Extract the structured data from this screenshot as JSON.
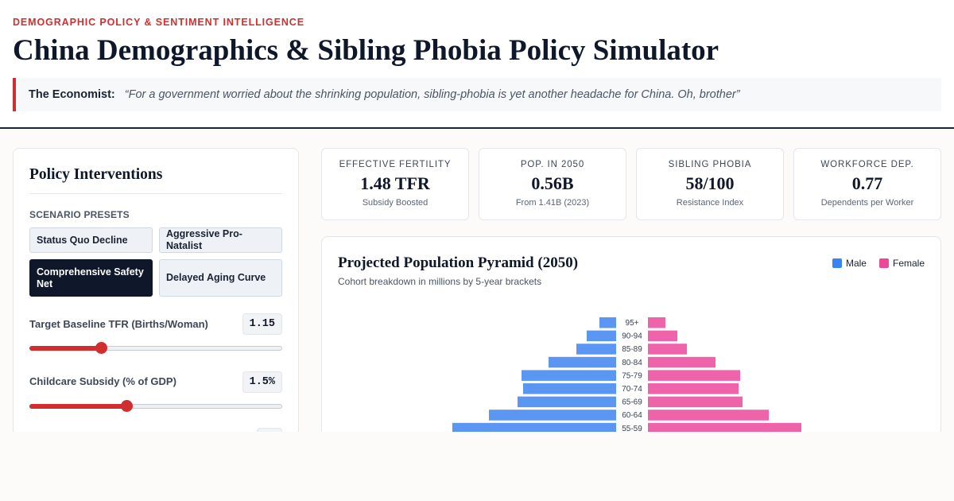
{
  "header": {
    "eyebrow": "DEMOGRAPHIC POLICY & SENTIMENT INTELLIGENCE",
    "title": "China Demographics & Sibling Phobia Policy Simulator",
    "quote_source": "The Economist:",
    "quote_text": "“For a government worried about the shrinking population, sibling-phobia is yet another headache for China. Oh, brother”"
  },
  "panel": {
    "title": "Policy Interventions",
    "presets_label": "SCENARIO PRESETS",
    "presets": [
      {
        "label": "Status Quo Decline",
        "active": false
      },
      {
        "label": "Aggressive Pro-Natalist",
        "active": false
      },
      {
        "label": "Comprehensive Safety Net",
        "active": true
      },
      {
        "label": "Delayed Aging Curve",
        "active": false
      }
    ],
    "controls": [
      {
        "label": "Target Baseline TFR (Births/Woman)",
        "value": "1.15",
        "fraction": 0.28
      },
      {
        "label": "Childcare Subsidy (% of GDP)",
        "value": "1.5%",
        "fraction": 0.38
      }
    ]
  },
  "kpis": [
    {
      "label": "EFFECTIVE FERTILITY",
      "value": "1.48 TFR",
      "sub": "Subsidy Boosted"
    },
    {
      "label": "POP. IN 2050",
      "value": "0.56B",
      "sub": "From 1.41B (2023)"
    },
    {
      "label": "SIBLING PHOBIA",
      "value": "58/100",
      "sub": "Resistance Index"
    },
    {
      "label": "WORKFORCE DEP.",
      "value": "0.77",
      "sub": "Dependents per Worker"
    }
  ],
  "chart": {
    "title": "Projected Population Pyramid (2050)",
    "subtitle": "Cohort breakdown in millions by 5-year brackets",
    "legend_male": "Male",
    "legend_female": "Female"
  },
  "colors": {
    "accent": "#d12f2f",
    "male": "#5b96f2",
    "female": "#ee63aa",
    "legend_male": "#3b82f6",
    "legend_female": "#ec4899"
  },
  "chart_data": {
    "type": "bar",
    "orientation": "horizontal-pyramid",
    "categories": [
      "95+",
      "90-94",
      "85-89",
      "80-84",
      "75-79",
      "70-74",
      "65-69",
      "60-64",
      "55-59"
    ],
    "series": [
      {
        "name": "Male",
        "values": [
          2.1,
          3.7,
          5.0,
          8.5,
          11.9,
          11.7,
          12.4,
          16.0,
          20.6
        ]
      },
      {
        "name": "Female",
        "values": [
          2.2,
          3.7,
          4.9,
          8.5,
          11.6,
          11.4,
          11.9,
          15.2,
          19.3
        ]
      }
    ],
    "title": "Projected Population Pyramid (2050)",
    "xlabel": "",
    "ylabel": ""
  }
}
